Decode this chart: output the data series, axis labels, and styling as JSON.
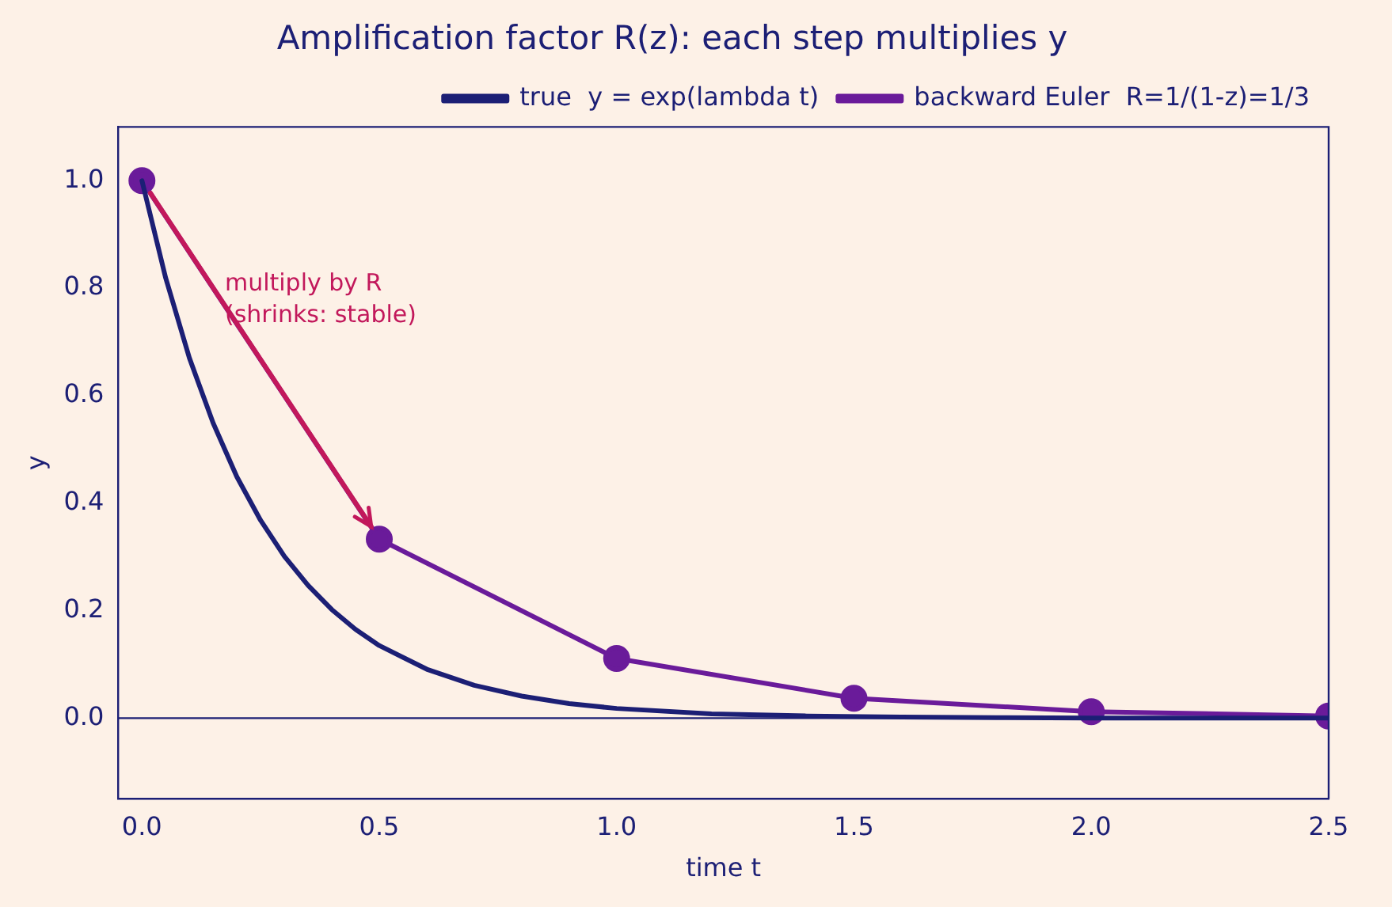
{
  "chart_data": {
    "type": "line",
    "title": "Amplification factor R(z): each step multiplies y",
    "xlabel": "time t",
    "ylabel": "y",
    "xlim": [
      -0.05,
      2.5
    ],
    "ylim": [
      -0.15,
      1.1
    ],
    "xticks": [
      {
        "value": 0,
        "label": "0.0"
      },
      {
        "value": 0.5,
        "label": "0.5"
      },
      {
        "value": 1,
        "label": "1.0"
      },
      {
        "value": 1.5,
        "label": "1.5"
      },
      {
        "value": 2,
        "label": "2.0"
      },
      {
        "value": 2.5,
        "label": "2.5"
      }
    ],
    "yticks": [
      {
        "value": 0,
        "label": "0.0"
      },
      {
        "value": 0.2,
        "label": "0.2"
      },
      {
        "value": 0.4,
        "label": "0.4"
      },
      {
        "value": 0.6,
        "label": "0.6"
      },
      {
        "value": 0.8,
        "label": "0.8"
      },
      {
        "value": 1,
        "label": "1.0"
      }
    ],
    "grid": false,
    "legend": "top right",
    "line_style": "solid",
    "series": [
      {
        "name": "true  y = exp(lambda t)",
        "color": "#1c1f75",
        "marker": "none",
        "x": [
          0,
          0.05,
          0.1,
          0.15,
          0.2,
          0.25,
          0.3,
          0.35,
          0.4,
          0.45,
          0.5,
          0.6,
          0.7,
          0.8,
          0.9,
          1.0,
          1.2,
          1.4,
          1.6,
          1.8,
          2.0,
          2.5
        ],
        "values": [
          1,
          0.819,
          0.67,
          0.549,
          0.449,
          0.368,
          0.301,
          0.247,
          0.202,
          0.165,
          0.135,
          0.091,
          0.061,
          0.041,
          0.027,
          0.018,
          0.008,
          0.004,
          0.002,
          0.001,
          0.0,
          0.0
        ]
      },
      {
        "name": "backward Euler  R=1/(1-z)=1/3",
        "color": "#6a1b9a",
        "marker": "circle",
        "x": [
          0,
          0.5,
          1,
          1.5,
          2,
          2.5
        ],
        "values": [
          1,
          0.333,
          0.111,
          0.037,
          0.012,
          0.004
        ]
      }
    ],
    "ref_lines": [
      {
        "axis": "y",
        "value": 0,
        "color": "#1c1f75",
        "line_style": "solid"
      }
    ],
    "annotations": [
      "multiply by R\n(shrinks: stable)"
    ]
  }
}
